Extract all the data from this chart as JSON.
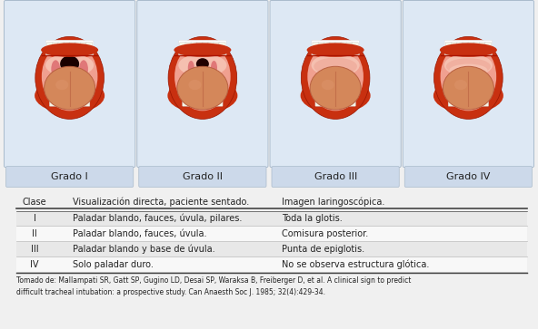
{
  "grades": [
    "Grado I",
    "Grado II",
    "Grado III",
    "Grado IV"
  ],
  "background_color": "#f0f0f0",
  "panel_bg": "#dde8f4",
  "label_bg": "#ccd9ea",
  "header_col1": "Clase",
  "header_col2": "Visualización directa, paciente sentado.",
  "header_col3": "Imagen laringoscópica.",
  "rows": [
    [
      "I",
      "Paladar blando, fauces, úvula, pilares.",
      "Toda la glotis."
    ],
    [
      "II",
      "Paladar blando, fauces, úvula.",
      "Comisura posterior."
    ],
    [
      "III",
      "Paladar blando y base de úvula.",
      "Punta de epiglotis."
    ],
    [
      "IV",
      "Solo paladar duro.",
      "No se observa estructura glótica."
    ]
  ],
  "footer": "Tomado de: Mallampati SR, Gatt SP, Gugino LD, Desai SP, Waraksa B, Freiberger D, et al. A clinical sign to predict\ndifficult tracheal intubation: a prospective study. Can Anaesth Soc J. 1985; 32(4):429-34.",
  "row_colors": [
    "#e8e8e8",
    "#f8f8f8",
    "#e8e8e8",
    "#f8f8f8"
  ],
  "text_color": "#222222",
  "line_color": "#666666",
  "lip_outer": "#c83010",
  "lip_inner": "#e85030",
  "mouth_pink": "#f0a090",
  "mouth_deep": "#e07878",
  "palate_pink": "#f5c0b0",
  "tongue_main": "#d4875a",
  "tongue_dark": "#b86040",
  "teeth_color": "#f5f5e8",
  "throat_dark": "#220000",
  "uvula_color": "#d05060"
}
